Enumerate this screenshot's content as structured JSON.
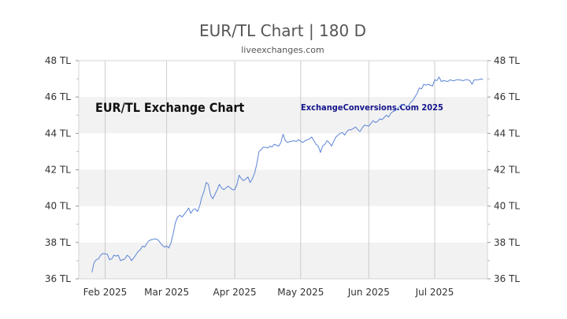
{
  "chart_data": {
    "type": "line",
    "title": "EUR/TL Chart | 180 D",
    "subtitle": "liveexchanges.com",
    "watermark_left": "EUR/TL Exchange Chart",
    "watermark_right": "ExchangeConversions.Com 2025",
    "xlabel": "",
    "ylabel": "",
    "ylim": [
      36,
      48
    ],
    "y_ticks": [
      36,
      38,
      40,
      42,
      44,
      46,
      48
    ],
    "y_tick_suffix": " TL",
    "x_range": [
      "2025-01-20",
      "2025-07-25"
    ],
    "x_ticks": [
      {
        "date": "2025-02-01",
        "label": "Feb 2025"
      },
      {
        "date": "2025-03-01",
        "label": "Mar 2025"
      },
      {
        "date": "2025-04-01",
        "label": "Apr 2025"
      },
      {
        "date": "2025-05-01",
        "label": "May 2025"
      },
      {
        "date": "2025-06-01",
        "label": "Jun 2025"
      },
      {
        "date": "2025-07-01",
        "label": "Jul 2025"
      }
    ],
    "grid": true,
    "banded_background": true,
    "line_color": "#5b84d6",
    "series": [
      {
        "points": [
          [
            "2025-01-26",
            36.35
          ],
          [
            "2025-01-27",
            36.9
          ],
          [
            "2025-01-28",
            37.05
          ],
          [
            "2025-01-29",
            37.1
          ],
          [
            "2025-01-30",
            37.3
          ],
          [
            "2025-01-31",
            37.4
          ],
          [
            "2025-02-02",
            37.35
          ],
          [
            "2025-02-03",
            37.05
          ],
          [
            "2025-02-04",
            37.1
          ],
          [
            "2025-02-05",
            37.3
          ],
          [
            "2025-02-06",
            37.25
          ],
          [
            "2025-02-07",
            37.3
          ],
          [
            "2025-02-08",
            37.0
          ],
          [
            "2025-02-10",
            37.1
          ],
          [
            "2025-02-11",
            37.3
          ],
          [
            "2025-02-12",
            37.2
          ],
          [
            "2025-02-13",
            37.0
          ],
          [
            "2025-02-14",
            37.15
          ],
          [
            "2025-02-16",
            37.5
          ],
          [
            "2025-02-17",
            37.6
          ],
          [
            "2025-02-18",
            37.8
          ],
          [
            "2025-02-19",
            37.75
          ],
          [
            "2025-02-20",
            37.95
          ],
          [
            "2025-02-21",
            38.1
          ],
          [
            "2025-02-22",
            38.15
          ],
          [
            "2025-02-24",
            38.2
          ],
          [
            "2025-02-25",
            38.15
          ],
          [
            "2025-02-26",
            38.0
          ],
          [
            "2025-02-27",
            37.85
          ],
          [
            "2025-02-28",
            37.75
          ],
          [
            "2025-03-01",
            37.8
          ],
          [
            "2025-03-02",
            37.7
          ],
          [
            "2025-03-03",
            38.0
          ],
          [
            "2025-03-04",
            38.5
          ],
          [
            "2025-03-05",
            39.1
          ],
          [
            "2025-03-06",
            39.4
          ],
          [
            "2025-03-07",
            39.5
          ],
          [
            "2025-03-08",
            39.4
          ],
          [
            "2025-03-10",
            39.7
          ],
          [
            "2025-03-11",
            39.9
          ],
          [
            "2025-03-12",
            39.6
          ],
          [
            "2025-03-13",
            39.8
          ],
          [
            "2025-03-14",
            39.85
          ],
          [
            "2025-03-15",
            39.7
          ],
          [
            "2025-03-16",
            40.0
          ],
          [
            "2025-03-17",
            40.5
          ],
          [
            "2025-03-18",
            40.8
          ],
          [
            "2025-03-19",
            41.3
          ],
          [
            "2025-03-20",
            41.2
          ],
          [
            "2025-03-21",
            40.6
          ],
          [
            "2025-03-22",
            40.4
          ],
          [
            "2025-03-24",
            40.9
          ],
          [
            "2025-03-25",
            41.2
          ],
          [
            "2025-03-26",
            41.0
          ],
          [
            "2025-03-27",
            40.9
          ],
          [
            "2025-03-28",
            41.0
          ],
          [
            "2025-03-29",
            41.1
          ],
          [
            "2025-03-31",
            40.9
          ],
          [
            "2025-04-01",
            40.9
          ],
          [
            "2025-04-02",
            41.2
          ],
          [
            "2025-04-03",
            41.7
          ],
          [
            "2025-04-04",
            41.5
          ],
          [
            "2025-04-05",
            41.4
          ],
          [
            "2025-04-07",
            41.6
          ],
          [
            "2025-04-08",
            41.3
          ],
          [
            "2025-04-09",
            41.5
          ],
          [
            "2025-04-10",
            41.8
          ],
          [
            "2025-04-11",
            42.3
          ],
          [
            "2025-04-12",
            43.0
          ],
          [
            "2025-04-13",
            43.1
          ],
          [
            "2025-04-14",
            43.25
          ],
          [
            "2025-04-16",
            43.2
          ],
          [
            "2025-04-17",
            43.3
          ],
          [
            "2025-04-18",
            43.25
          ],
          [
            "2025-04-19",
            43.4
          ],
          [
            "2025-04-21",
            43.3
          ],
          [
            "2025-04-22",
            43.5
          ],
          [
            "2025-04-23",
            43.95
          ],
          [
            "2025-04-24",
            43.6
          ],
          [
            "2025-04-25",
            43.5
          ],
          [
            "2025-04-26",
            43.55
          ],
          [
            "2025-04-28",
            43.6
          ],
          [
            "2025-04-29",
            43.55
          ],
          [
            "2025-04-30",
            43.65
          ],
          [
            "2025-05-02",
            43.5
          ],
          [
            "2025-05-03",
            43.6
          ],
          [
            "2025-05-05",
            43.7
          ],
          [
            "2025-05-06",
            43.8
          ],
          [
            "2025-05-07",
            43.6
          ],
          [
            "2025-05-08",
            43.4
          ],
          [
            "2025-05-09",
            43.3
          ],
          [
            "2025-05-10",
            42.95
          ],
          [
            "2025-05-11",
            43.3
          ],
          [
            "2025-05-12",
            43.4
          ],
          [
            "2025-05-13",
            43.6
          ],
          [
            "2025-05-14",
            43.5
          ],
          [
            "2025-05-15",
            43.3
          ],
          [
            "2025-05-16",
            43.55
          ],
          [
            "2025-05-17",
            43.8
          ],
          [
            "2025-05-19",
            44.0
          ],
          [
            "2025-05-20",
            44.05
          ],
          [
            "2025-05-21",
            43.9
          ],
          [
            "2025-05-22",
            44.1
          ],
          [
            "2025-05-23",
            44.2
          ],
          [
            "2025-05-24",
            44.2
          ],
          [
            "2025-05-26",
            44.35
          ],
          [
            "2025-05-27",
            44.2
          ],
          [
            "2025-05-28",
            44.1
          ],
          [
            "2025-05-29",
            44.3
          ],
          [
            "2025-05-30",
            44.45
          ],
          [
            "2025-06-01",
            44.4
          ],
          [
            "2025-06-02",
            44.55
          ],
          [
            "2025-06-03",
            44.7
          ],
          [
            "2025-06-04",
            44.6
          ],
          [
            "2025-06-05",
            44.65
          ],
          [
            "2025-06-06",
            44.8
          ],
          [
            "2025-06-07",
            44.75
          ],
          [
            "2025-06-09",
            45.0
          ],
          [
            "2025-06-10",
            44.9
          ],
          [
            "2025-06-11",
            45.1
          ],
          [
            "2025-06-12",
            45.2
          ],
          [
            "2025-06-13",
            45.25
          ],
          [
            "2025-06-14",
            45.35
          ],
          [
            "2025-06-16",
            45.6
          ],
          [
            "2025-06-17",
            45.55
          ],
          [
            "2025-06-18",
            45.5
          ],
          [
            "2025-06-19",
            45.5
          ],
          [
            "2025-06-20",
            45.7
          ],
          [
            "2025-06-21",
            45.8
          ],
          [
            "2025-06-23",
            46.2
          ],
          [
            "2025-06-24",
            46.5
          ],
          [
            "2025-06-25",
            46.45
          ],
          [
            "2025-06-26",
            46.7
          ],
          [
            "2025-06-27",
            46.65
          ],
          [
            "2025-06-28",
            46.7
          ],
          [
            "2025-06-30",
            46.6
          ],
          [
            "2025-07-01",
            46.95
          ],
          [
            "2025-07-02",
            46.9
          ],
          [
            "2025-07-03",
            47.1
          ],
          [
            "2025-07-04",
            46.85
          ],
          [
            "2025-07-05",
            46.9
          ],
          [
            "2025-07-07",
            46.85
          ],
          [
            "2025-07-08",
            46.95
          ],
          [
            "2025-07-09",
            46.9
          ],
          [
            "2025-07-10",
            46.9
          ],
          [
            "2025-07-11",
            46.95
          ],
          [
            "2025-07-12",
            46.95
          ],
          [
            "2025-07-14",
            46.9
          ],
          [
            "2025-07-15",
            46.95
          ],
          [
            "2025-07-16",
            46.95
          ],
          [
            "2025-07-17",
            46.9
          ],
          [
            "2025-07-18",
            46.7
          ],
          [
            "2025-07-19",
            46.95
          ],
          [
            "2025-07-21",
            46.95
          ],
          [
            "2025-07-22",
            47.0
          ],
          [
            "2025-07-23",
            46.95
          ]
        ]
      }
    ]
  }
}
